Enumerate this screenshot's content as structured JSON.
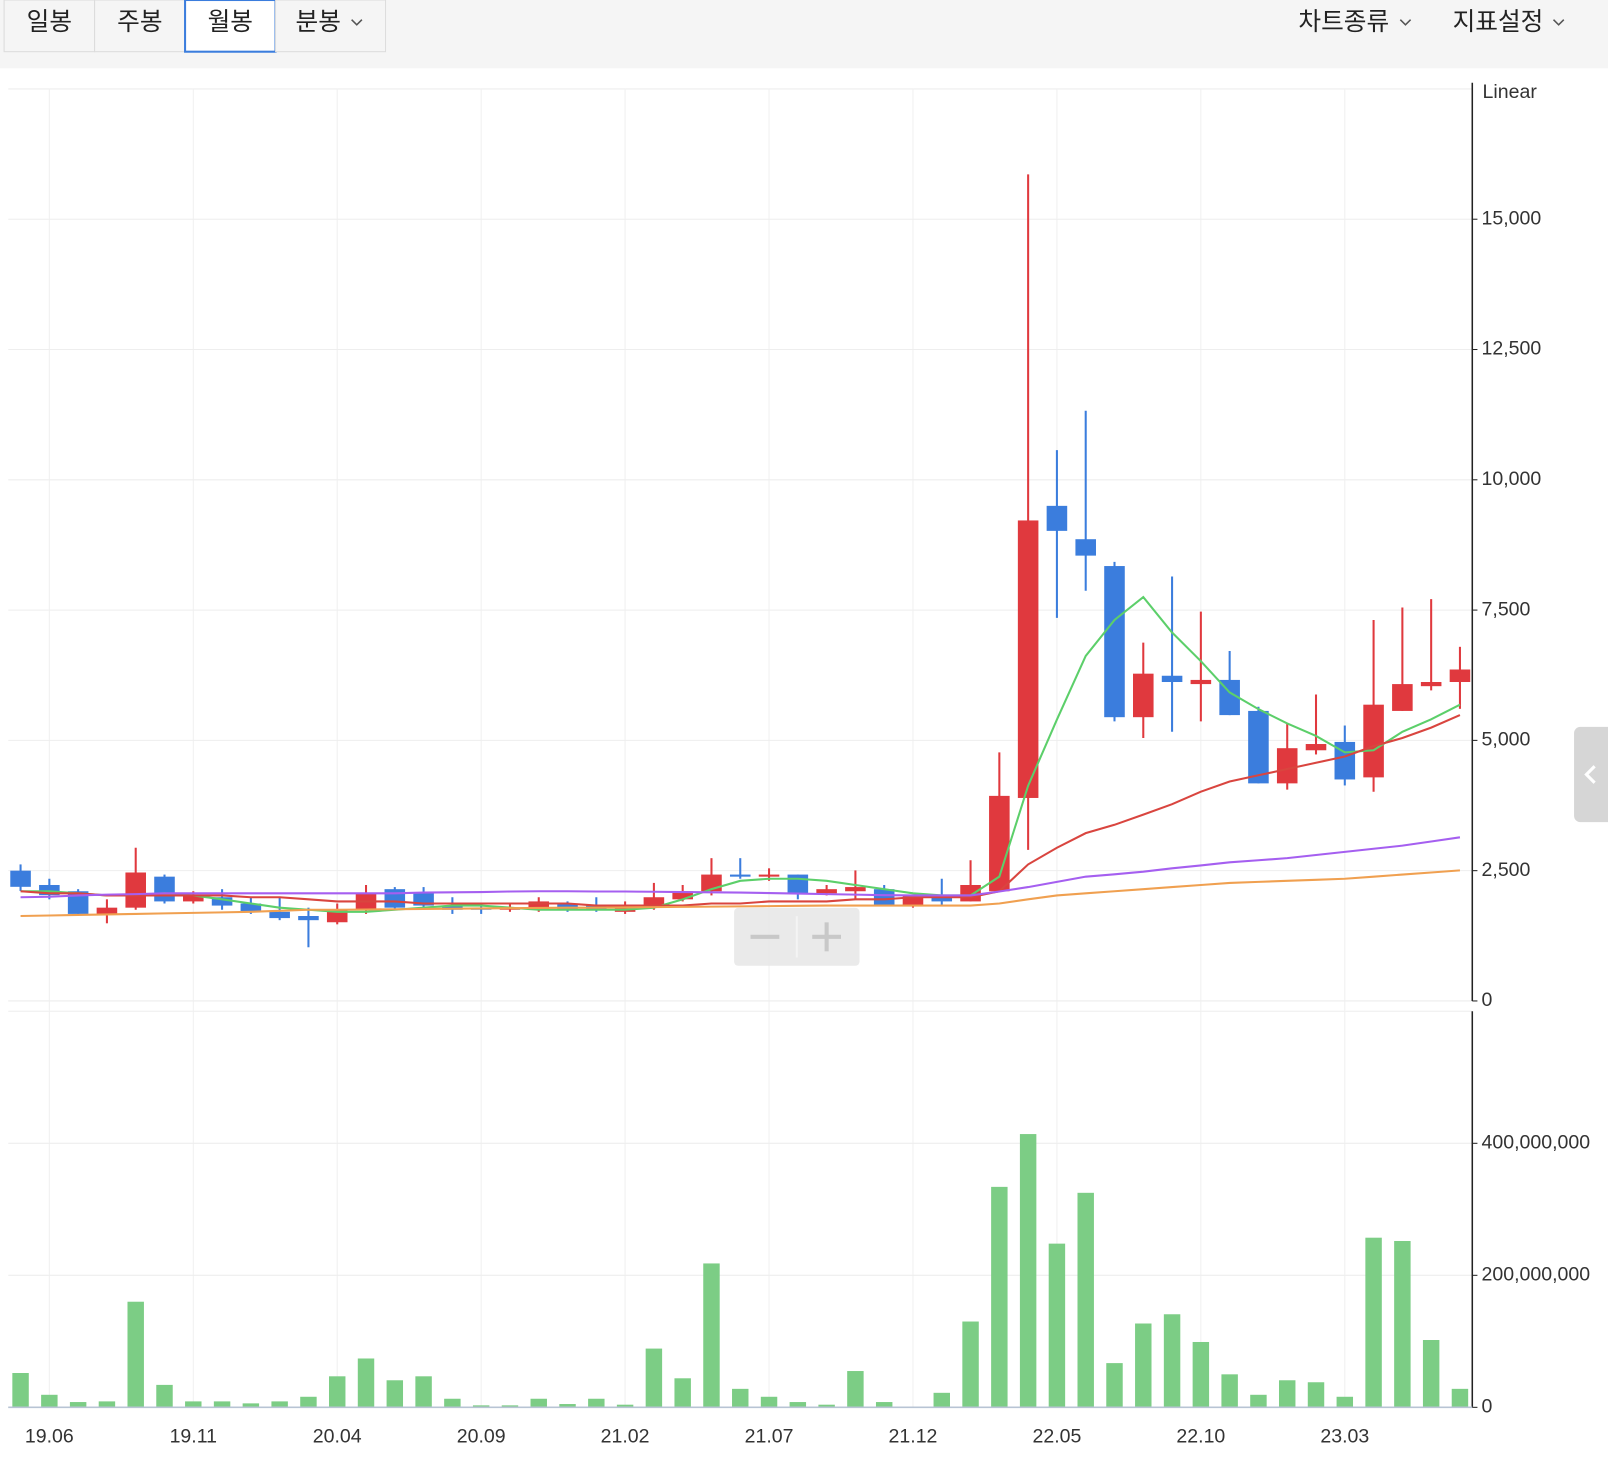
{
  "toolbar": {
    "tabs": [
      "일봉",
      "주봉",
      "월봉",
      "분봉"
    ],
    "selected_tab": 2,
    "menus": [
      "차트종류",
      "지표설정"
    ]
  },
  "chart_data": [
    {
      "type": "candlestick",
      "scale_label": "Linear",
      "up_color": "#e0393e",
      "down_color": "#3b7ddd",
      "grid": true,
      "ylim": [
        0,
        17500
      ],
      "yticks": [
        0,
        {
          "value": 2500,
          "label": "2,500"
        },
        {
          "value": 5000,
          "label": "5,000"
        },
        {
          "value": 7500,
          "label": "7,500"
        },
        {
          "value": 10000,
          "label": "10,000"
        },
        {
          "value": 12500,
          "label": "12,500"
        },
        {
          "value": 15000,
          "label": "15,000"
        }
      ],
      "open": [
        2500,
        2225,
        2105,
        1670,
        1790,
        2385,
        1910,
        1990,
        1870,
        1710,
        1630,
        1510,
        1750,
        2145,
        2065,
        1830,
        1790,
        1750,
        1750,
        1870,
        1830,
        1710,
        1790,
        1950,
        2105,
        2425,
        2385,
        2425,
        2065,
        2105,
        2145,
        1830,
        2025,
        1910,
        2105,
        3895,
        9500,
        8860,
        8345,
        5445,
        6240,
        6080,
        6160,
        5565,
        4175,
        4810,
        4970,
        4290,
        5565,
        6040,
        6120
      ],
      "high": [
        2620,
        2345,
        2145,
        1950,
        2940,
        2425,
        2105,
        2145,
        1990,
        1990,
        1790,
        1870,
        2225,
        2185,
        2185,
        1990,
        1870,
        1870,
        1990,
        1910,
        1990,
        1910,
        2265,
        2225,
        2740,
        2740,
        2545,
        2425,
        2225,
        2505,
        2225,
        2025,
        2345,
        2700,
        4770,
        15860,
        10570,
        11325,
        8425,
        6875,
        8145,
        7470,
        6715,
        5645,
        5325,
        5880,
        5285,
        7310,
        7550,
        7710,
        6795
      ],
      "low": [
        2110,
        1950,
        1630,
        1490,
        1750,
        1870,
        1870,
        1750,
        1670,
        1550,
        1030,
        1470,
        1670,
        1750,
        1750,
        1670,
        1670,
        1710,
        1710,
        1710,
        1710,
        1670,
        1750,
        1910,
        2025,
        2345,
        2305,
        1950,
        2025,
        1950,
        1830,
        1790,
        1830,
        1910,
        2105,
        2900,
        7350,
        7870,
        5365,
        5045,
        5165,
        5365,
        5485,
        4175,
        4055,
        4730,
        4135,
        4015,
        5565,
        5960,
        5605
      ],
      "close": [
        2190,
        2030,
        1670,
        1790,
        2465,
        1910,
        2025,
        1830,
        1710,
        1590,
        1550,
        1750,
        2065,
        1790,
        1830,
        1750,
        1750,
        1790,
        1910,
        1750,
        1750,
        1830,
        1990,
        2105,
        2425,
        2385,
        2425,
        2065,
        2145,
        2185,
        1830,
        2025,
        1910,
        2225,
        3935,
        9220,
        9020,
        8545,
        5445,
        6280,
        6120,
        6160,
        5485,
        4175,
        4850,
        4930,
        4250,
        5685,
        6080,
        6120,
        6360
      ],
      "moving_averages": [
        {
          "color": "#5ccf6a",
          "values": [
            2105,
            2105,
            2065,
            2025,
            2025,
            2065,
            2025,
            1950,
            1870,
            1790,
            1750,
            1710,
            1710,
            1750,
            1790,
            1830,
            1830,
            1790,
            1750,
            1750,
            1750,
            1750,
            1790,
            1950,
            2145,
            2305,
            2345,
            2345,
            2305,
            2225,
            2145,
            2065,
            2025,
            2025,
            2385,
            4130,
            5400,
            6620,
            7310,
            7750,
            7070,
            6520,
            5920,
            5600,
            5325,
            5085,
            4770,
            4810,
            5165,
            5405,
            5685
          ]
        },
        {
          "color": "#d9453f",
          "values": [
            2105,
            2065,
            2065,
            2025,
            2025,
            2025,
            2025,
            2025,
            1990,
            1990,
            1950,
            1910,
            1910,
            1910,
            1870,
            1870,
            1870,
            1870,
            1870,
            1870,
            1830,
            1830,
            1830,
            1830,
            1870,
            1870,
            1910,
            1910,
            1910,
            1950,
            1950,
            1990,
            1990,
            1990,
            2105,
            2620,
            2940,
            3220,
            3380,
            3575,
            3775,
            4015,
            4210,
            4330,
            4450,
            4570,
            4690,
            4890,
            5045,
            5245,
            5485
          ]
        },
        {
          "color": "#a55ff0",
          "values": [
            1990,
            2000,
            2025,
            2040,
            2050,
            2065,
            2065,
            2065,
            2065,
            2065,
            2065,
            2065,
            2065,
            2065,
            2080,
            2085,
            2090,
            2100,
            2105,
            2105,
            2100,
            2100,
            2095,
            2090,
            2085,
            2080,
            2070,
            2060,
            2050,
            2040,
            2030,
            2025,
            2025,
            2025,
            2100,
            2185,
            2285,
            2385,
            2430,
            2480,
            2545,
            2600,
            2660,
            2700,
            2740,
            2800,
            2860,
            2920,
            2980,
            3060,
            3140
          ]
        },
        {
          "color": "#f0a050",
          "values": [
            1630,
            1640,
            1650,
            1660,
            1670,
            1680,
            1690,
            1700,
            1710,
            1730,
            1750,
            1750,
            1755,
            1760,
            1765,
            1770,
            1775,
            1780,
            1785,
            1790,
            1790,
            1795,
            1800,
            1805,
            1810,
            1815,
            1820,
            1825,
            1830,
            1830,
            1830,
            1830,
            1830,
            1830,
            1870,
            1950,
            2025,
            2065,
            2105,
            2145,
            2185,
            2225,
            2265,
            2285,
            2305,
            2325,
            2345,
            2385,
            2425,
            2465,
            2505
          ]
        }
      ]
    },
    {
      "type": "bar",
      "color": "#7ccd85",
      "grid": true,
      "ylim": [
        0,
        600000000
      ],
      "yticks": [
        0,
        {
          "value": 200000000,
          "label": "200,000,000"
        },
        {
          "value": 400000000,
          "label": "400,000,000"
        }
      ],
      "categories": [
        null,
        "19.06",
        null,
        null,
        null,
        null,
        "19.11",
        null,
        null,
        null,
        null,
        "20.04",
        null,
        null,
        null,
        null,
        "20.09",
        null,
        null,
        null,
        null,
        "21.02",
        null,
        null,
        null,
        null,
        "21.07",
        null,
        null,
        null,
        null,
        "21.12",
        null,
        null,
        null,
        null,
        "22.05",
        null,
        null,
        null,
        null,
        "22.10",
        null,
        null,
        null,
        null,
        "23.03",
        null,
        null,
        null,
        null
      ],
      "values": [
        52000000,
        19000000,
        8000000,
        9000000,
        160000000,
        34000000,
        9000000,
        9000000,
        6000000,
        9000000,
        16000000,
        47000000,
        74000000,
        41000000,
        47000000,
        13000000,
        3000000,
        3000000,
        13000000,
        5000000,
        13000000,
        4000000,
        89000000,
        44000000,
        218000000,
        28000000,
        16000000,
        8000000,
        4000000,
        55000000,
        8000000,
        0,
        22000000,
        130000000,
        334000000,
        414000000,
        248000000,
        325000000,
        67000000,
        127000000,
        141000000,
        99000000,
        50000000,
        19000000,
        41000000,
        38000000,
        16000000,
        257000000,
        252000000,
        102000000,
        28000000
      ]
    }
  ]
}
